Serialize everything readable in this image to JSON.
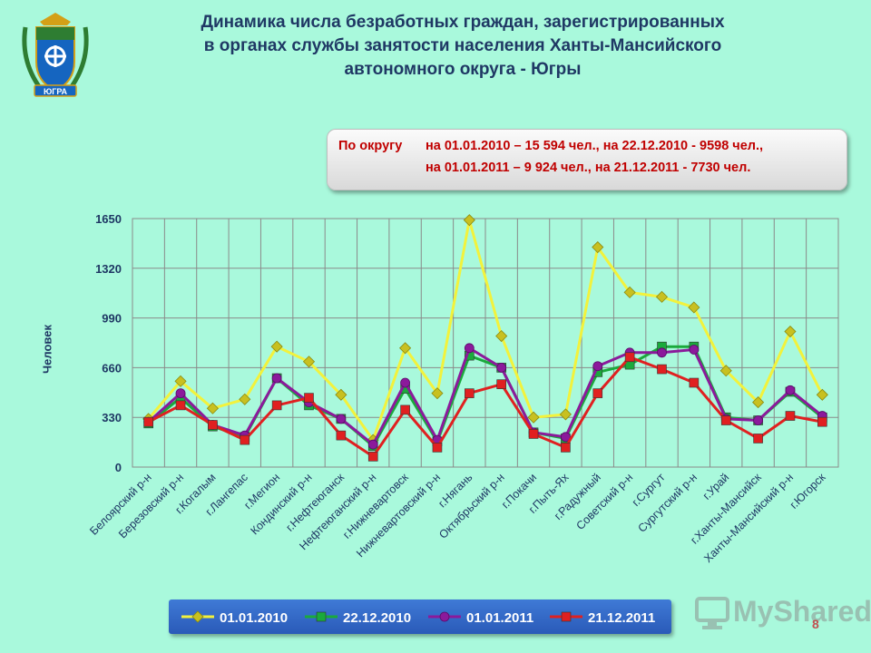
{
  "header": {
    "title_lines": [
      "Динамика числа безработных граждан, зарегистрированных",
      "в органах службы занятости населения Ханты-Мансийского",
      "автономного округа - Югры"
    ],
    "emblem_icon": "coat-of-arms-icon",
    "emblem_text": "ЮГРА"
  },
  "callout": {
    "label": "По округу",
    "line1": "на 01.01.2010 – 15 594 чел., на 22.12.2010 -  9598 чел.,",
    "line2": "на 01.01.2011 – 9 924 чел., на 21.12.2011 -  7730 чел."
  },
  "colors": {
    "background": "#a9f9dc",
    "series_2010": "#f2f23c",
    "series_2010_marker": "#c8c020",
    "series_dec2010": "#1aaa3c",
    "series_2011": "#8b1a9b",
    "series_dec2011": "#e02020",
    "legend_bg": "#2f66c8"
  },
  "watermark": {
    "text": "MyShared",
    "page_number": "8"
  },
  "chart_data": {
    "type": "line",
    "ylabel": "Человек",
    "ylim": [
      0,
      1650
    ],
    "yticks": [
      0,
      330,
      660,
      990,
      1320,
      1650
    ],
    "grid": true,
    "legend_position": "bottom",
    "categories": [
      "Белоярский р-н",
      "Березовский р-н",
      "г.Когалым",
      "г.Лангепас",
      "г.Мегион",
      "Кондинский р-н",
      "г.Нефтеюганск",
      "Нефтеюганский р-н",
      "г.Нижневартовск",
      "Нижневартовский р-н",
      "г.Нягань",
      "Октябрьский р-н",
      "г.Покачи",
      "г.Пыть-Ях",
      "г.Радужный",
      "Советский р-н",
      "г.Сургут",
      "Сургутский р-н",
      "г.Урай",
      "г.Ханты-Мансийск",
      "Ханты-Мансийский р-н",
      "г.Югорск"
    ],
    "series": [
      {
        "name": "01.01.2010",
        "values": [
          320,
          570,
          390,
          450,
          800,
          700,
          480,
          180,
          790,
          490,
          1640,
          870,
          330,
          350,
          1460,
          1160,
          1130,
          1060,
          640,
          430,
          900,
          480
        ]
      },
      {
        "name": "22.12.2010",
        "values": [
          290,
          460,
          270,
          200,
          590,
          410,
          320,
          140,
          520,
          170,
          740,
          660,
          230,
          190,
          630,
          680,
          800,
          800,
          330,
          310,
          500,
          330
        ]
      },
      {
        "name": "01.01.2011",
        "values": [
          300,
          490,
          280,
          210,
          590,
          430,
          320,
          150,
          560,
          180,
          790,
          660,
          230,
          200,
          670,
          760,
          760,
          780,
          320,
          310,
          510,
          340
        ]
      },
      {
        "name": "21.12.2011",
        "values": [
          300,
          410,
          280,
          180,
          410,
          460,
          210,
          70,
          380,
          130,
          490,
          550,
          220,
          130,
          490,
          730,
          650,
          560,
          310,
          190,
          340,
          300
        ]
      }
    ]
  }
}
